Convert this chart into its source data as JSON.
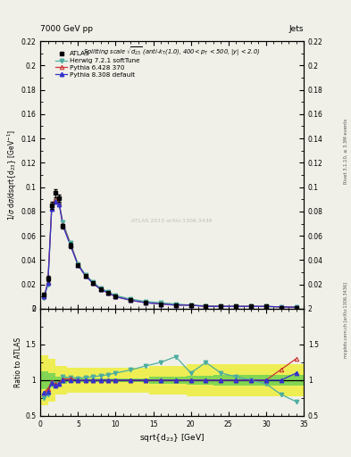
{
  "x_data": [
    0.5,
    1.0,
    1.5,
    2.0,
    2.5,
    3.0,
    4.0,
    5.0,
    6.0,
    7.0,
    8.0,
    9.0,
    10.0,
    12.0,
    14.0,
    16.0,
    18.0,
    20.0,
    22.0,
    24.0,
    26.0,
    28.0,
    30.0,
    32.0,
    34.0
  ],
  "atlas_y": [
    0.012,
    0.025,
    0.085,
    0.095,
    0.091,
    0.068,
    0.052,
    0.036,
    0.027,
    0.021,
    0.016,
    0.013,
    0.01,
    0.007,
    0.005,
    0.004,
    0.003,
    0.003,
    0.002,
    0.002,
    0.002,
    0.002,
    0.002,
    0.001,
    0.001
  ],
  "atlas_yerr": [
    0.001,
    0.002,
    0.003,
    0.003,
    0.003,
    0.002,
    0.002,
    0.001,
    0.001,
    0.001,
    0.001,
    0.001,
    0.001,
    0.0005,
    0.0004,
    0.0003,
    0.0003,
    0.0002,
    0.0002,
    0.0002,
    0.0002,
    0.0002,
    0.0002,
    0.0001,
    0.0001
  ],
  "herwig_y": [
    0.009,
    0.02,
    0.082,
    0.089,
    0.086,
    0.071,
    0.054,
    0.037,
    0.028,
    0.022,
    0.017,
    0.014,
    0.011,
    0.008,
    0.006,
    0.005,
    0.004,
    0.003,
    0.0025,
    0.0022,
    0.0021,
    0.002,
    0.0019,
    0.0016,
    0.0014
  ],
  "pythia6_y": [
    0.01,
    0.022,
    0.083,
    0.09,
    0.087,
    0.069,
    0.053,
    0.036,
    0.027,
    0.021,
    0.016,
    0.013,
    0.01,
    0.007,
    0.005,
    0.004,
    0.003,
    0.003,
    0.002,
    0.002,
    0.002,
    0.002,
    0.002,
    0.0015,
    0.0013
  ],
  "pythia8_y": [
    0.01,
    0.021,
    0.082,
    0.088,
    0.086,
    0.068,
    0.052,
    0.036,
    0.027,
    0.021,
    0.016,
    0.013,
    0.01,
    0.007,
    0.005,
    0.004,
    0.003,
    0.003,
    0.002,
    0.002,
    0.002,
    0.002,
    0.002,
    0.0015,
    0.0013
  ],
  "herwig_ratio": [
    0.75,
    0.8,
    0.965,
    0.937,
    0.945,
    1.044,
    1.038,
    1.028,
    1.037,
    1.048,
    1.063,
    1.077,
    1.1,
    1.143,
    1.2,
    1.25,
    1.33,
    1.1,
    1.25,
    1.1,
    1.05,
    1.0,
    0.95,
    0.8,
    0.7
  ],
  "pythia6_ratio": [
    0.83,
    0.88,
    0.977,
    0.947,
    0.956,
    1.015,
    1.019,
    1.0,
    1.0,
    1.0,
    1.0,
    1.0,
    1.0,
    1.0,
    1.0,
    1.0,
    1.0,
    1.0,
    1.0,
    1.0,
    1.0,
    1.0,
    1.0,
    1.15,
    1.3
  ],
  "pythia8_ratio": [
    0.83,
    0.84,
    0.965,
    0.926,
    0.945,
    1.0,
    1.0,
    1.0,
    1.0,
    1.0,
    1.0,
    1.0,
    1.0,
    1.0,
    1.0,
    1.0,
    1.0,
    1.0,
    1.0,
    1.0,
    1.0,
    1.0,
    1.0,
    1.0,
    1.1
  ],
  "band_x_edges": [
    0.0,
    1.0,
    2.0,
    3.5,
    6.5,
    9.0,
    14.5,
    19.5,
    23.0,
    26.0,
    29.5,
    35.0
  ],
  "yellow_lo": [
    0.65,
    0.7,
    0.8,
    0.83,
    0.83,
    0.83,
    0.8,
    0.78,
    0.77,
    0.77,
    0.77,
    0.77
  ],
  "yellow_hi": [
    1.35,
    1.3,
    1.2,
    1.17,
    1.17,
    1.17,
    1.2,
    1.22,
    1.23,
    1.23,
    1.23,
    1.23
  ],
  "green_lo": [
    0.88,
    0.9,
    0.95,
    0.97,
    0.97,
    0.97,
    0.95,
    0.94,
    0.93,
    0.93,
    0.93,
    0.93
  ],
  "green_hi": [
    1.12,
    1.1,
    1.05,
    1.03,
    1.03,
    1.03,
    1.05,
    1.06,
    1.07,
    1.07,
    1.07,
    1.07
  ],
  "xlim": [
    0,
    35
  ],
  "ylim_main": [
    0,
    0.22
  ],
  "ylim_ratio": [
    0.5,
    2.0
  ],
  "yticks_main": [
    0.0,
    0.02,
    0.04,
    0.06,
    0.08,
    0.1,
    0.12,
    0.14,
    0.16,
    0.18,
    0.2,
    0.22
  ],
  "yticks_ratio": [
    0.5,
    1.0,
    1.5,
    2.0
  ],
  "color_herwig": "#4dada0",
  "color_pythia6": "#cc3333",
  "color_pythia8": "#3333cc",
  "color_atlas": "black",
  "color_green": "#55cc55",
  "color_yellow": "#eeee44",
  "bg_color": "#f0f0e8"
}
